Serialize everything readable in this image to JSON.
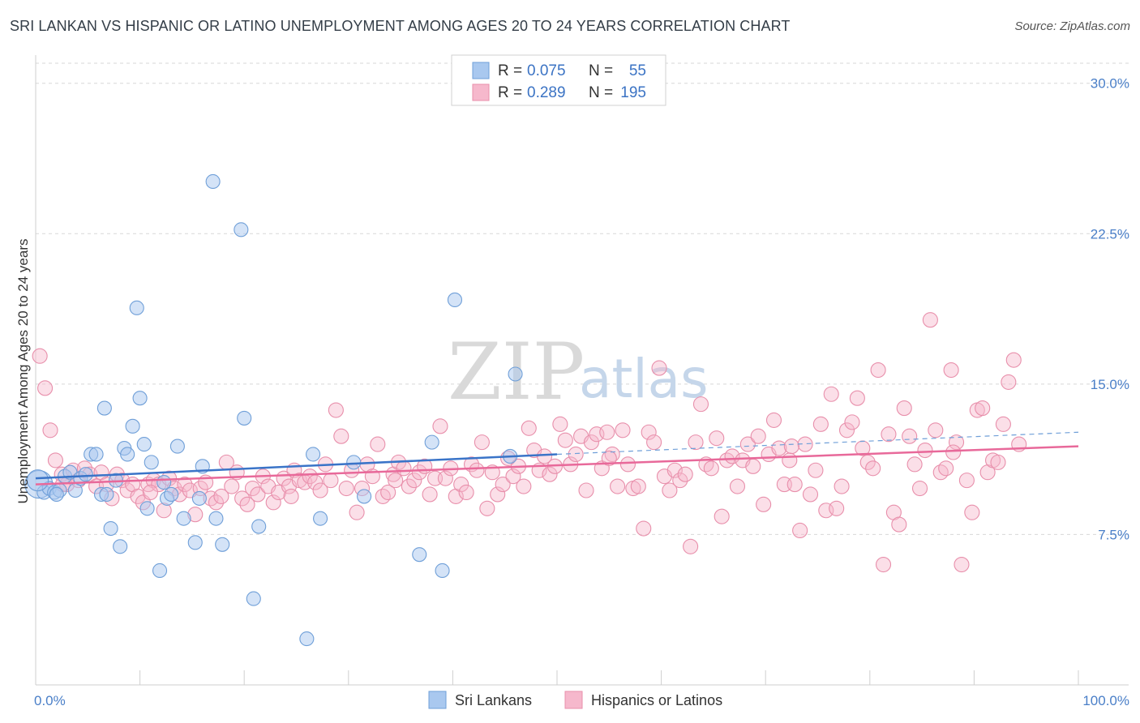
{
  "title": "SRI LANKAN VS HISPANIC OR LATINO UNEMPLOYMENT AMONG AGES 20 TO 24 YEARS CORRELATION CHART",
  "source": "Source: ZipAtlas.com",
  "watermark": {
    "zip": "ZIP",
    "atlas": "atlas"
  },
  "colors": {
    "blue_fill": "#a9c8ef",
    "blue_stroke": "#6f9fd8",
    "blue_line": "#3a74c8",
    "pink_fill": "#f6b8cc",
    "pink_stroke": "#e88fab",
    "pink_line": "#e8699a",
    "tick_text": "#4a7fc8",
    "grid": "#d7d7d7"
  },
  "legend": {
    "rows": [
      {
        "r_label": "R =",
        "r_value": "0.075",
        "n_label": "N =",
        "n_value": "55"
      },
      {
        "r_label": "R =",
        "r_value": "0.289",
        "n_label": "N =",
        "n_value": "195"
      }
    ]
  },
  "bottom_legend": [
    "Sri Lankans",
    "Hispanics or Latinos"
  ],
  "chart_data": {
    "type": "scatter",
    "title": "SRI LANKAN VS HISPANIC OR LATINO UNEMPLOYMENT AMONG AGES 20 TO 24 YEARS CORRELATION CHART",
    "xlabel": "",
    "ylabel": "Unemployment Among Ages 20 to 24 years",
    "xlim": [
      0,
      100
    ],
    "ylim": [
      0,
      31
    ],
    "x_tick_labels": [
      "0.0%",
      "100.0%"
    ],
    "y_ticks": [
      7.5,
      15.0,
      22.5,
      30.0
    ],
    "y_tick_labels": [
      "7.5%",
      "15.0%",
      "22.5%",
      "30.0%"
    ],
    "grid": "horizontal dashed",
    "legend_position": "top-center",
    "series": [
      {
        "name": "Sri Lankans",
        "r": 0.075,
        "n": 55,
        "trend": {
          "x0": 0,
          "y0": 10.3,
          "x1": 50,
          "y1": 11.5,
          "dashed_to": 100,
          "dashed_y": 12.6
        },
        "points": [
          [
            0.3,
            10.0
          ],
          [
            0.8,
            9.6
          ],
          [
            1.3,
            9.8
          ],
          [
            1.8,
            9.6
          ],
          [
            2.3,
            9.7
          ],
          [
            2.8,
            10.4
          ],
          [
            3.3,
            10.6
          ],
          [
            3.8,
            9.7
          ],
          [
            4.3,
            10.3
          ],
          [
            4.8,
            10.5
          ],
          [
            5.3,
            11.5
          ],
          [
            5.8,
            11.5
          ],
          [
            6.3,
            9.5
          ],
          [
            6.8,
            9.5
          ],
          [
            6.6,
            13.8
          ],
          [
            7.2,
            7.8
          ],
          [
            7.7,
            10.2
          ],
          [
            8.1,
            6.9
          ],
          [
            8.5,
            11.8
          ],
          [
            8.8,
            11.5
          ],
          [
            9.3,
            12.9
          ],
          [
            9.7,
            18.8
          ],
          [
            10.0,
            14.3
          ],
          [
            10.4,
            12.0
          ],
          [
            10.7,
            8.8
          ],
          [
            11.1,
            11.1
          ],
          [
            11.9,
            5.7
          ],
          [
            12.3,
            10.1
          ],
          [
            12.6,
            9.3
          ],
          [
            13.0,
            9.5
          ],
          [
            13.6,
            11.9
          ],
          [
            14.2,
            8.3
          ],
          [
            15.3,
            7.1
          ],
          [
            15.7,
            9.3
          ],
          [
            16.0,
            10.9
          ],
          [
            17.0,
            25.1
          ],
          [
            17.3,
            8.3
          ],
          [
            17.9,
            7.0
          ],
          [
            19.7,
            22.7
          ],
          [
            20.0,
            13.3
          ],
          [
            20.9,
            4.3
          ],
          [
            21.4,
            7.9
          ],
          [
            26.0,
            2.3
          ],
          [
            26.6,
            11.5
          ],
          [
            27.3,
            8.3
          ],
          [
            30.5,
            11.1
          ],
          [
            31.5,
            9.4
          ],
          [
            36.8,
            6.5
          ],
          [
            38.0,
            12.1
          ],
          [
            39.0,
            5.7
          ],
          [
            40.2,
            19.2
          ],
          [
            45.5,
            11.4
          ],
          [
            46.0,
            15.5
          ],
          [
            0.2,
            10.2
          ],
          [
            2.0,
            9.5
          ]
        ]
      },
      {
        "name": "Hispanics or Latinos",
        "r": 0.289,
        "n": 195,
        "trend": {
          "x0": 0,
          "y0": 10.0,
          "x1": 100,
          "y1": 11.9
        },
        "points": [
          [
            0.4,
            16.4
          ],
          [
            0.9,
            14.8
          ],
          [
            1.4,
            12.7
          ],
          [
            1.9,
            11.2
          ],
          [
            2.5,
            10.5
          ],
          [
            3.0,
            10.0
          ],
          [
            3.6,
            10.7
          ],
          [
            4.1,
            10.2
          ],
          [
            4.7,
            10.8
          ],
          [
            5.2,
            10.5
          ],
          [
            5.8,
            9.9
          ],
          [
            6.3,
            10.6
          ],
          [
            6.8,
            10.0
          ],
          [
            7.3,
            9.3
          ],
          [
            7.8,
            10.5
          ],
          [
            8.3,
            10.2
          ],
          [
            8.8,
            9.7
          ],
          [
            9.3,
            10.0
          ],
          [
            9.8,
            9.4
          ],
          [
            10.3,
            9.1
          ],
          [
            10.8,
            10.0
          ],
          [
            11.3,
            10.2
          ],
          [
            11.8,
            10.0
          ],
          [
            12.3,
            8.7
          ],
          [
            12.8,
            10.3
          ],
          [
            13.3,
            9.8
          ],
          [
            13.8,
            9.5
          ],
          [
            14.3,
            10.0
          ],
          [
            14.8,
            9.7
          ],
          [
            15.3,
            8.5
          ],
          [
            15.8,
            9.8
          ],
          [
            16.3,
            10.1
          ],
          [
            16.8,
            9.3
          ],
          [
            17.3,
            9.1
          ],
          [
            17.8,
            9.4
          ],
          [
            18.3,
            11.1
          ],
          [
            18.8,
            9.9
          ],
          [
            19.3,
            10.6
          ],
          [
            19.8,
            9.3
          ],
          [
            20.3,
            9.0
          ],
          [
            20.8,
            9.8
          ],
          [
            21.3,
            9.5
          ],
          [
            21.8,
            10.4
          ],
          [
            22.3,
            9.9
          ],
          [
            22.8,
            9.1
          ],
          [
            23.3,
            9.6
          ],
          [
            23.8,
            10.3
          ],
          [
            24.3,
            9.9
          ],
          [
            24.8,
            10.7
          ],
          [
            25.3,
            10.2
          ],
          [
            25.8,
            10.1
          ],
          [
            26.3,
            10.4
          ],
          [
            26.8,
            10.1
          ],
          [
            27.3,
            9.7
          ],
          [
            27.8,
            11.0
          ],
          [
            28.3,
            10.2
          ],
          [
            28.8,
            13.7
          ],
          [
            29.3,
            12.4
          ],
          [
            29.8,
            9.8
          ],
          [
            30.3,
            10.7
          ],
          [
            30.8,
            8.6
          ],
          [
            31.3,
            9.8
          ],
          [
            31.8,
            11.0
          ],
          [
            32.3,
            10.4
          ],
          [
            32.8,
            12.0
          ],
          [
            33.3,
            9.4
          ],
          [
            33.8,
            9.6
          ],
          [
            34.3,
            10.5
          ],
          [
            34.8,
            11.1
          ],
          [
            35.3,
            10.8
          ],
          [
            35.8,
            9.9
          ],
          [
            36.3,
            10.2
          ],
          [
            36.8,
            10.6
          ],
          [
            37.3,
            10.9
          ],
          [
            37.8,
            9.5
          ],
          [
            38.3,
            10.3
          ],
          [
            38.8,
            12.9
          ],
          [
            39.3,
            10.3
          ],
          [
            39.8,
            10.8
          ],
          [
            40.3,
            9.4
          ],
          [
            40.8,
            10.0
          ],
          [
            41.3,
            9.6
          ],
          [
            41.8,
            11.0
          ],
          [
            42.3,
            10.7
          ],
          [
            42.8,
            12.1
          ],
          [
            43.3,
            8.8
          ],
          [
            43.8,
            10.6
          ],
          [
            44.3,
            9.5
          ],
          [
            44.8,
            10.0
          ],
          [
            45.3,
            11.3
          ],
          [
            45.8,
            10.4
          ],
          [
            46.3,
            10.9
          ],
          [
            46.8,
            9.9
          ],
          [
            47.3,
            12.8
          ],
          [
            47.8,
            11.7
          ],
          [
            48.3,
            10.7
          ],
          [
            48.8,
            11.4
          ],
          [
            49.3,
            10.5
          ],
          [
            49.8,
            10.9
          ],
          [
            50.3,
            13.0
          ],
          [
            50.8,
            12.2
          ],
          [
            51.3,
            11.0
          ],
          [
            51.8,
            11.5
          ],
          [
            52.3,
            12.4
          ],
          [
            52.8,
            9.7
          ],
          [
            53.3,
            12.1
          ],
          [
            53.8,
            12.5
          ],
          [
            54.3,
            10.8
          ],
          [
            54.8,
            12.6
          ],
          [
            55.3,
            11.5
          ],
          [
            55.8,
            9.9
          ],
          [
            56.3,
            12.7
          ],
          [
            56.8,
            11.0
          ],
          [
            57.3,
            9.8
          ],
          [
            57.8,
            9.9
          ],
          [
            58.3,
            7.8
          ],
          [
            58.8,
            12.6
          ],
          [
            59.3,
            12.1
          ],
          [
            59.8,
            15.8
          ],
          [
            60.3,
            10.4
          ],
          [
            60.8,
            9.7
          ],
          [
            61.3,
            10.7
          ],
          [
            61.8,
            10.2
          ],
          [
            62.3,
            10.5
          ],
          [
            62.8,
            6.9
          ],
          [
            63.3,
            12.1
          ],
          [
            63.8,
            14.0
          ],
          [
            64.3,
            11.0
          ],
          [
            64.8,
            10.8
          ],
          [
            65.3,
            12.3
          ],
          [
            65.8,
            8.4
          ],
          [
            66.3,
            11.2
          ],
          [
            66.8,
            11.4
          ],
          [
            67.3,
            9.9
          ],
          [
            67.8,
            11.2
          ],
          [
            68.3,
            12.0
          ],
          [
            68.8,
            10.9
          ],
          [
            69.3,
            12.4
          ],
          [
            69.8,
            9.0
          ],
          [
            70.3,
            11.5
          ],
          [
            70.8,
            13.2
          ],
          [
            71.3,
            11.8
          ],
          [
            71.8,
            10.0
          ],
          [
            72.3,
            11.2
          ],
          [
            72.8,
            10.0
          ],
          [
            73.3,
            7.7
          ],
          [
            73.8,
            12.0
          ],
          [
            74.3,
            9.5
          ],
          [
            74.8,
            10.7
          ],
          [
            75.3,
            13.0
          ],
          [
            75.8,
            8.7
          ],
          [
            76.3,
            14.5
          ],
          [
            76.8,
            8.8
          ],
          [
            77.3,
            9.9
          ],
          [
            77.8,
            12.7
          ],
          [
            78.3,
            13.1
          ],
          [
            78.8,
            14.3
          ],
          [
            79.3,
            11.8
          ],
          [
            79.8,
            11.1
          ],
          [
            80.3,
            10.8
          ],
          [
            80.8,
            15.7
          ],
          [
            81.3,
            6.0
          ],
          [
            81.8,
            12.5
          ],
          [
            82.3,
            8.6
          ],
          [
            82.8,
            8.0
          ],
          [
            83.3,
            13.8
          ],
          [
            83.8,
            12.4
          ],
          [
            84.3,
            11.0
          ],
          [
            84.8,
            9.8
          ],
          [
            85.3,
            11.7
          ],
          [
            85.8,
            18.2
          ],
          [
            86.3,
            12.7
          ],
          [
            86.8,
            10.6
          ],
          [
            87.3,
            10.8
          ],
          [
            87.8,
            15.7
          ],
          [
            88.3,
            12.1
          ],
          [
            88.8,
            6.0
          ],
          [
            89.3,
            10.2
          ],
          [
            89.8,
            8.6
          ],
          [
            90.3,
            13.7
          ],
          [
            90.8,
            13.8
          ],
          [
            91.3,
            10.6
          ],
          [
            91.8,
            11.2
          ],
          [
            92.3,
            11.1
          ],
          [
            92.8,
            13.0
          ],
          [
            93.3,
            15.1
          ],
          [
            93.8,
            16.2
          ],
          [
            94.3,
            12.0
          ],
          [
            2.6,
            10.0
          ],
          [
            11.0,
            9.6
          ],
          [
            24.5,
            9.4
          ],
          [
            34.5,
            10.2
          ],
          [
            55.0,
            11.3
          ],
          [
            72.5,
            11.9
          ],
          [
            88.0,
            11.6
          ]
        ]
      }
    ]
  }
}
